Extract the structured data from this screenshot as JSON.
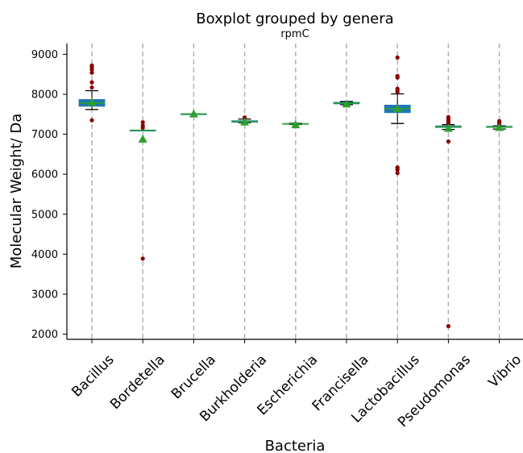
{
  "chart_data": {
    "type": "boxplot",
    "title": "Boxplot grouped by genera",
    "subtitle": "rpmC",
    "xlabel": "Bacteria",
    "ylabel": "Molecular Weight/ Da",
    "ylim": [
      1870,
      9270
    ],
    "yticks": [
      2000,
      3000,
      4000,
      5000,
      6000,
      7000,
      8000,
      9000
    ],
    "grid": "vertical dashed",
    "categories": [
      "Bacillus",
      "Bordetella",
      "Brucella",
      "Burkholderia",
      "Escherichia",
      "Francisella",
      "Lactobacillus",
      "Pseudomonas",
      "Vibrio"
    ],
    "boxes": [
      {
        "q1": 7700,
        "median": 7780,
        "q3": 7870,
        "whisker_low": 7620,
        "whisker_high": 8090,
        "mean": 7800,
        "outliers": [
          7350,
          8170,
          8300,
          8540,
          8620,
          8680,
          8720
        ]
      },
      {
        "q1": 7100,
        "median": 7100,
        "q3": 7100,
        "whisker_low": 7100,
        "whisker_high": 7100,
        "mean": 6880,
        "outliers": [
          3890,
          7160,
          7220,
          7300
        ]
      },
      {
        "q1": 7510,
        "median": 7510,
        "q3": 7510,
        "whisker_low": 7510,
        "whisker_high": 7510,
        "mean": 7510,
        "outliers": []
      },
      {
        "q1": 7300,
        "median": 7320,
        "q3": 7340,
        "whisker_low": 7290,
        "whisker_high": 7380,
        "mean": 7310,
        "outliers": [
          7420
        ]
      },
      {
        "q1": 7250,
        "median": 7260,
        "q3": 7270,
        "whisker_low": 7245,
        "whisker_high": 7275,
        "mean": 7240,
        "outliers": []
      },
      {
        "q1": 7760,
        "median": 7780,
        "q3": 7800,
        "whisker_low": 7740,
        "whisker_high": 7820,
        "mean": 7760,
        "outliers": []
      },
      {
        "q1": 7540,
        "median": 7640,
        "q3": 7730,
        "whisker_low": 7270,
        "whisker_high": 8010,
        "mean": 7640,
        "outliers": [
          6030,
          6110,
          6150,
          6170,
          8060,
          8110,
          8140,
          8420,
          8460,
          8920
        ]
      },
      {
        "q1": 7170,
        "median": 7190,
        "q3": 7210,
        "whisker_low": 7120,
        "whisker_high": 7240,
        "mean": 7150,
        "outliers": [
          2200,
          6820,
          7280,
          7320,
          7350,
          7400,
          7430
        ]
      },
      {
        "q1": 7170,
        "median": 7180,
        "q3": 7200,
        "whisker_low": 7130,
        "whisker_high": 7210,
        "mean": 7170,
        "outliers": [
          7240,
          7280,
          7310,
          7330
        ]
      }
    ],
    "colors": {
      "box_fill": "#1f77b4",
      "median": "#2ca02c",
      "mean_marker": "#2ca02c",
      "outlier": "#8b0000",
      "whisker": "#000000",
      "grid": "#b0b0b0"
    }
  }
}
